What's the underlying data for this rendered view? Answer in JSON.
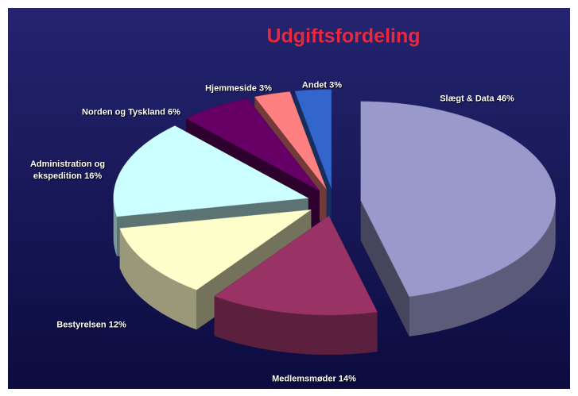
{
  "chart_data": {
    "type": "pie3d",
    "title": "Udgiftsfordeling",
    "categories": [
      "Slægt & Data",
      "Medlemsmøder",
      "Bestyrelsen",
      "Administration og ekspedition",
      "Norden og Tyskland",
      "Hjemmeside",
      "Andet"
    ],
    "values": [
      46,
      14,
      12,
      16,
      6,
      3,
      3
    ],
    "value_labels": [
      "46%",
      "14%",
      "12%",
      "16%",
      "6%",
      "3%",
      "3%"
    ],
    "colors": [
      "#9999cc",
      "#993366",
      "#ffffcc",
      "#ccffff",
      "#660066",
      "#ff8080",
      "#3366cc"
    ]
  }
}
